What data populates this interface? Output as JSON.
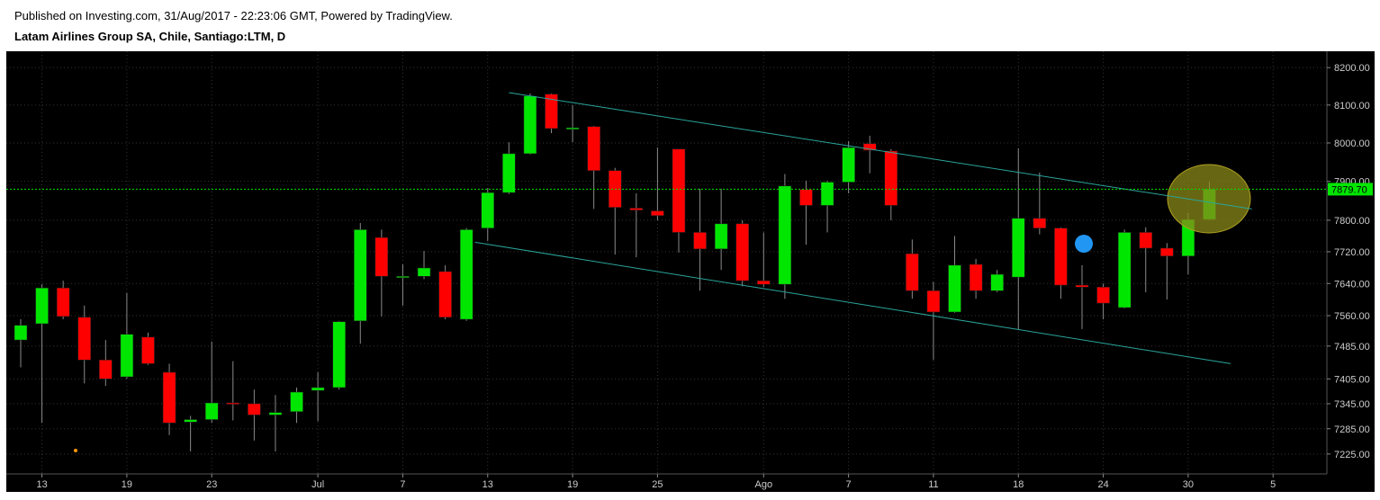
{
  "published": "Published on Investing.com, 31/Aug/2017 - 22:23:06 GMT, Powered by TradingView.",
  "chart_data": {
    "type": "candlestick",
    "title": "Latam Airlines Group SA, Chile, Santiago:LTM, D",
    "categories": [
      null,
      "13",
      null,
      null,
      null,
      "19",
      null,
      null,
      null,
      "23",
      null,
      null,
      null,
      null,
      "Jul",
      null,
      null,
      null,
      "7",
      null,
      null,
      null,
      "13",
      null,
      null,
      null,
      "19",
      null,
      null,
      null,
      "25",
      null,
      null,
      null,
      null,
      "Ago",
      null,
      null,
      null,
      "7",
      null,
      null,
      null,
      "11",
      null,
      null,
      null,
      "18",
      null,
      null,
      null,
      "24",
      null,
      null,
      null,
      "30",
      null,
      null,
      null,
      "5"
    ],
    "open": [
      7500,
      7540,
      7629,
      7556,
      7451,
      7410,
      7507,
      7421,
      7301,
      7307,
      7347,
      7345,
      7318,
      7326,
      7377,
      7384,
      7547,
      7756,
      7658,
      7658,
      7670,
      7551,
      7780,
      7871,
      7972,
      8129,
      8036,
      8043,
      7928,
      7831,
      7824,
      7984,
      7769,
      7727,
      7791,
      7647,
      7638,
      7879,
      7838,
      7898,
      7998,
      7979,
      7715,
      7622,
      7569,
      7688,
      7622,
      7656,
      7805,
      7780,
      7636,
      7631,
      7580,
      7769,
      7729,
      7709,
      7802,
      null,
      null,
      null
    ],
    "high": [
      7551,
      7638,
      7647,
      7585,
      7500,
      7616,
      7518,
      7442,
      7316,
      7496,
      7448,
      7379,
      7366,
      7384,
      7421,
      7547,
      7793,
      7776,
      7688,
      7722,
      7686,
      7780,
      7883,
      8002,
      8131,
      8131,
      8100,
      8045,
      7935,
      7869,
      7988,
      7984,
      7881,
      7881,
      7800,
      7769,
      7919,
      7902,
      7902,
      8005,
      8019,
      7984,
      7751,
      7644,
      7760,
      7702,
      7674,
      7986,
      7923,
      7782,
      7686,
      7640,
      7776,
      7782,
      7742,
      7819,
      7900,
      null,
      null,
      null
    ],
    "low": [
      7433,
      7299,
      7551,
      7394,
      7388,
      7405,
      7439,
      7270,
      7231,
      7299,
      7305,
      7257,
      7231,
      7299,
      7303,
      7379,
      7491,
      7558,
      7585,
      7651,
      7551,
      7547,
      7747,
      7867,
      7970,
      8026,
      8002,
      7829,
      7713,
      7706,
      7800,
      7718,
      7622,
      7674,
      7633,
      7631,
      7602,
      7738,
      7769,
      7869,
      7921,
      7800,
      7602,
      7451,
      7567,
      7602,
      7618,
      7527,
      7764,
      7602,
      7527,
      7551,
      7578,
      7618,
      7600,
      7663,
      7800,
      null,
      null,
      null
    ],
    "close": [
      7536,
      7629,
      7558,
      7451,
      7405,
      7514,
      7442,
      7299,
      7307,
      7347,
      7345,
      7318,
      7324,
      7373,
      7384,
      7545,
      7776,
      7658,
      7658,
      7679,
      7556,
      7776,
      7871,
      7972,
      8124,
      8038,
      8040,
      7928,
      7833,
      7826,
      7812,
      7769,
      7727,
      7791,
      7647,
      7638,
      7888,
      7838,
      7898,
      7988,
      7981,
      7838,
      7622,
      7569,
      7686,
      7622,
      7663,
      7805,
      7780,
      7636,
      7631,
      7591,
      7769,
      7729,
      7709,
      7802,
      7879.7,
      null,
      null,
      null
    ],
    "up_color": "#00e600",
    "down_color": "#ff0000",
    "last_price": {
      "value": 7879.7,
      "label": "7879.70"
    },
    "last_price_color": "#00e600",
    "trendlines": [
      {
        "x": [
          23,
          58
        ],
        "values": [
          8133,
          7829
        ]
      },
      {
        "x": [
          21.4,
          57
        ],
        "values": [
          7744,
          7442
        ]
      }
    ],
    "trendline_color": "#2aa59a",
    "log_scale": true,
    "grid": true,
    "ylim": [
      7178,
      8244
    ],
    "yticks": [
      {
        "value": 7225,
        "label": "7225.00"
      },
      {
        "value": 7285,
        "label": "7285.00"
      },
      {
        "value": 7345,
        "label": "7345.00"
      },
      {
        "value": 7405,
        "label": "7405.00"
      },
      {
        "value": 7485,
        "label": "7485.00"
      },
      {
        "value": 7560,
        "label": "7560.00"
      },
      {
        "value": 7640,
        "label": "7640.00"
      },
      {
        "value": 7720,
        "label": "7720.00"
      },
      {
        "value": 7800,
        "label": "7800.00"
      },
      {
        "value": 7900,
        "label": "7900.00"
      },
      {
        "value": 8000,
        "label": "8000.00"
      },
      {
        "value": 8100,
        "label": "8100.00"
      },
      {
        "value": 8200,
        "label": "8200.00"
      }
    ]
  }
}
